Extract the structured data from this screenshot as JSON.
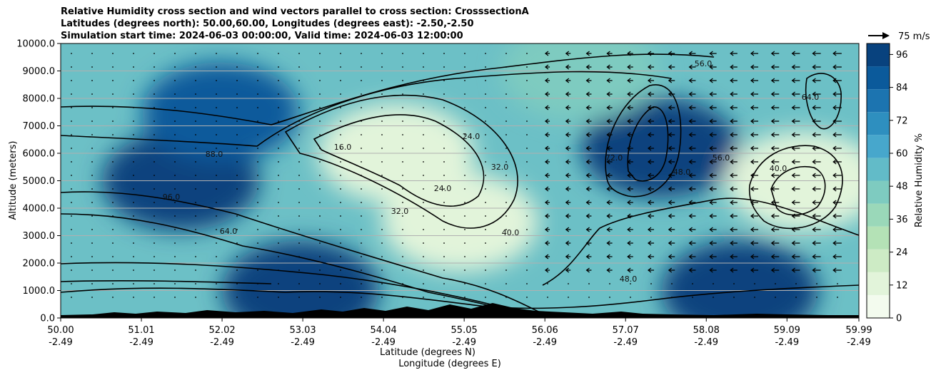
{
  "titles": [
    "Relative Humidity cross section and wind vectors parallel to cross section: CrosssectionA",
    "Latitudes (degrees north): 50.00,60.00, Longitudes (degrees east): -2.50,-2.50",
    "Simulation start time: 2024-06-03 00:00:00, Valid time: 2024-06-03 12:00:00"
  ],
  "chart_data": {
    "type": "heatmap",
    "title": "Relative Humidity cross section and wind vectors parallel to cross section: CrosssectionA",
    "ylabel": "Altitude (meters)",
    "xlabel_lines": [
      "Latitude (degrees N)",
      "Longitude (degrees E)"
    ],
    "ylim": [
      0,
      10000
    ],
    "xlim": [
      50.0,
      59.99
    ],
    "yticks": [
      "0.0",
      "1000.0",
      "2000.0",
      "3000.0",
      "4000.0",
      "5000.0",
      "6000.0",
      "7000.0",
      "8000.0",
      "9000.0",
      "10000.0"
    ],
    "xticks_lat": [
      "50.00",
      "51.01",
      "52.02",
      "53.03",
      "54.04",
      "55.05",
      "56.06",
      "57.07",
      "58.08",
      "59.09",
      "59.99"
    ],
    "xticks_lon": [
      "-2.49",
      "-2.49",
      "-2.49",
      "-2.49",
      "-2.49",
      "-2.49",
      "-2.49",
      "-2.49",
      "-2.49",
      "-2.49",
      "-2.49"
    ],
    "grid": "horizontal",
    "colorbar": {
      "label": "Relative Humidity %",
      "range": [
        0,
        100
      ],
      "ticks": [
        "0",
        "12",
        "24",
        "36",
        "48",
        "60",
        "72",
        "84",
        "96"
      ],
      "colors": [
        "#f3fbee",
        "#e2f4da",
        "#cdebc5",
        "#b4e2b6",
        "#9ad8b9",
        "#7ecbc0",
        "#62bbc8",
        "#47a7cc",
        "#2e8fbf",
        "#1c74b0",
        "#0b5a9b",
        "#08427e"
      ]
    },
    "wind_reference": "75 m/s",
    "contour_labels": [
      "16.0",
      "24.0",
      "32.0",
      "40.0",
      "48.0",
      "56.0",
      "64.0",
      "72.0",
      "80.0",
      "88.0",
      "96.0"
    ],
    "humidity_regions": [
      {
        "lat": 51.5,
        "alt": 5000,
        "rh": 96
      },
      {
        "lat": 52.0,
        "alt": 7500,
        "rh": 88
      },
      {
        "lat": 54.2,
        "alt": 6000,
        "rh": 12
      },
      {
        "lat": 55.0,
        "alt": 3500,
        "rh": 16
      },
      {
        "lat": 57.5,
        "alt": 6200,
        "rh": 96
      },
      {
        "lat": 59.3,
        "alt": 5000,
        "rh": 16
      },
      {
        "lat": 56.5,
        "alt": 9000,
        "rh": 48
      },
      {
        "lat": 58.5,
        "alt": 1000,
        "rh": 96
      },
      {
        "lat": 53.0,
        "alt": 1000,
        "rh": 96
      }
    ]
  }
}
